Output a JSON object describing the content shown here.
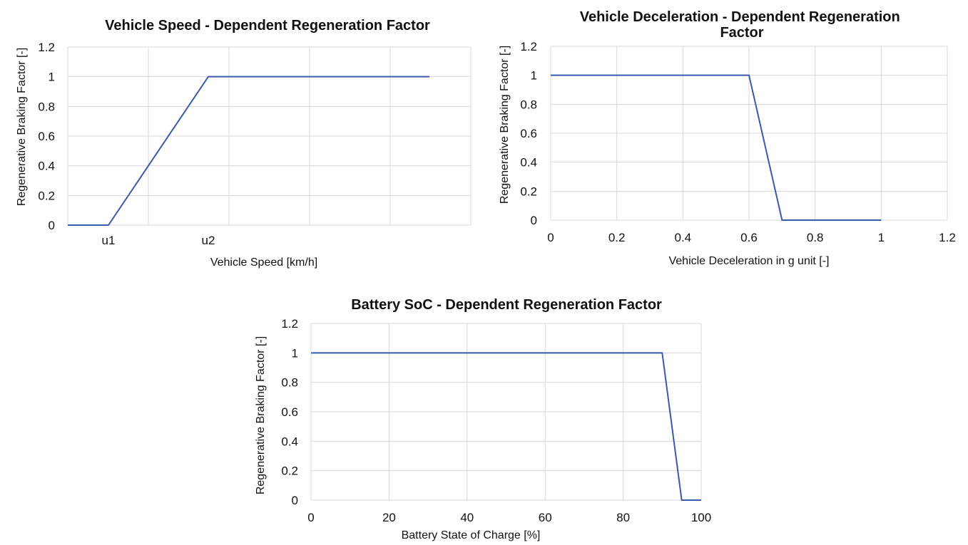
{
  "chart_data": [
    {
      "type": "line",
      "title": "Vehicle Speed - Dependent Regeneration Factor",
      "xlabel": "Vehicle Speed [km/h]",
      "ylabel": "Regenerative Braking Factor [-]",
      "x_ticks": [
        "u1",
        "u2"
      ],
      "ylim": [
        0,
        1.2
      ],
      "y_ticks": [
        "0",
        "0.2",
        "0.4",
        "0.6",
        "0.8",
        "1",
        "1.2"
      ],
      "grid": true,
      "series": [
        {
          "color": "#3a5ba9",
          "points": [
            [
              "start",
              0
            ],
            [
              "u1",
              0
            ],
            [
              "u2",
              1
            ],
            [
              "end",
              1
            ]
          ]
        }
      ]
    },
    {
      "type": "line",
      "title": "Vehicle Deceleration - Dependent Regeneration Factor",
      "xlabel": "Vehicle Deceleration in g unit [-]",
      "ylabel": "Regenerative Braking Factor [-]",
      "xlim": [
        0,
        1.2
      ],
      "x_ticks": [
        "0",
        "0.2",
        "0.4",
        "0.6",
        "0.8",
        "1",
        "1.2"
      ],
      "ylim": [
        0,
        1.2
      ],
      "y_ticks": [
        "0",
        "0.2",
        "0.4",
        "0.6",
        "0.8",
        "1",
        "1.2"
      ],
      "grid": true,
      "series": [
        {
          "color": "#3a5ba9",
          "x": [
            0,
            0.6,
            0.7,
            1
          ],
          "y": [
            1,
            1,
            0,
            0
          ]
        }
      ]
    },
    {
      "type": "line",
      "title": "Battery SoC - Dependent Regeneration Factor",
      "xlabel": "Battery State of Charge [%]",
      "ylabel": "Regenerative Braking Factor [-]",
      "xlim": [
        0,
        100
      ],
      "x_ticks": [
        "0",
        "20",
        "40",
        "60",
        "80",
        "100"
      ],
      "ylim": [
        0,
        1.2
      ],
      "y_ticks": [
        "0",
        "0.2",
        "0.4",
        "0.6",
        "0.8",
        "1",
        "1.2"
      ],
      "grid": true,
      "series": [
        {
          "color": "#3a5ba9",
          "x": [
            0,
            90,
            95,
            100
          ],
          "y": [
            1,
            1,
            0,
            0
          ]
        }
      ]
    }
  ]
}
